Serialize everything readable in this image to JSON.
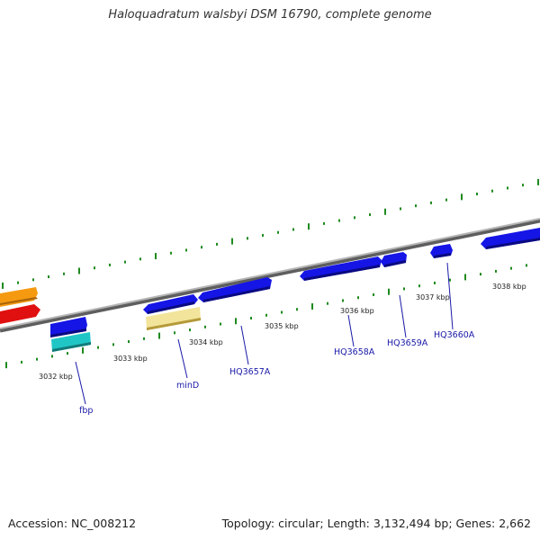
{
  "title": "Haloquadratum walsbyi DSM 16790, complete genome",
  "footer": {
    "accession": "Accession: NC_008212",
    "summary": "Topology: circular; Length: 3,132,494 bp; Genes: 2,662"
  },
  "colors": {
    "backbone": "#8a8a8a",
    "gc_ticks": "#1f8a1f",
    "gene_forward": "#1515e6",
    "gene_reverse_red": "#e01010",
    "gene_orange": "#f59a10",
    "gene_cyan": "#20c6c6",
    "gene_pale": "#f2e49a",
    "label_text": "#1a1aa8"
  },
  "ruler": [
    {
      "label": "3032 kbp"
    },
    {
      "label": "3033 kbp"
    },
    {
      "label": "3034 kbp"
    },
    {
      "label": "3035 kbp"
    },
    {
      "label": "3036 kbp"
    },
    {
      "label": "3037 kbp"
    },
    {
      "label": "3038 kbp"
    }
  ],
  "gene_labels": [
    {
      "label": "fbp"
    },
    {
      "label": "minD"
    },
    {
      "label": "HQ3657A"
    },
    {
      "label": "HQ3658A"
    },
    {
      "label": "HQ3659A"
    },
    {
      "label": "HQ3660A"
    }
  ]
}
